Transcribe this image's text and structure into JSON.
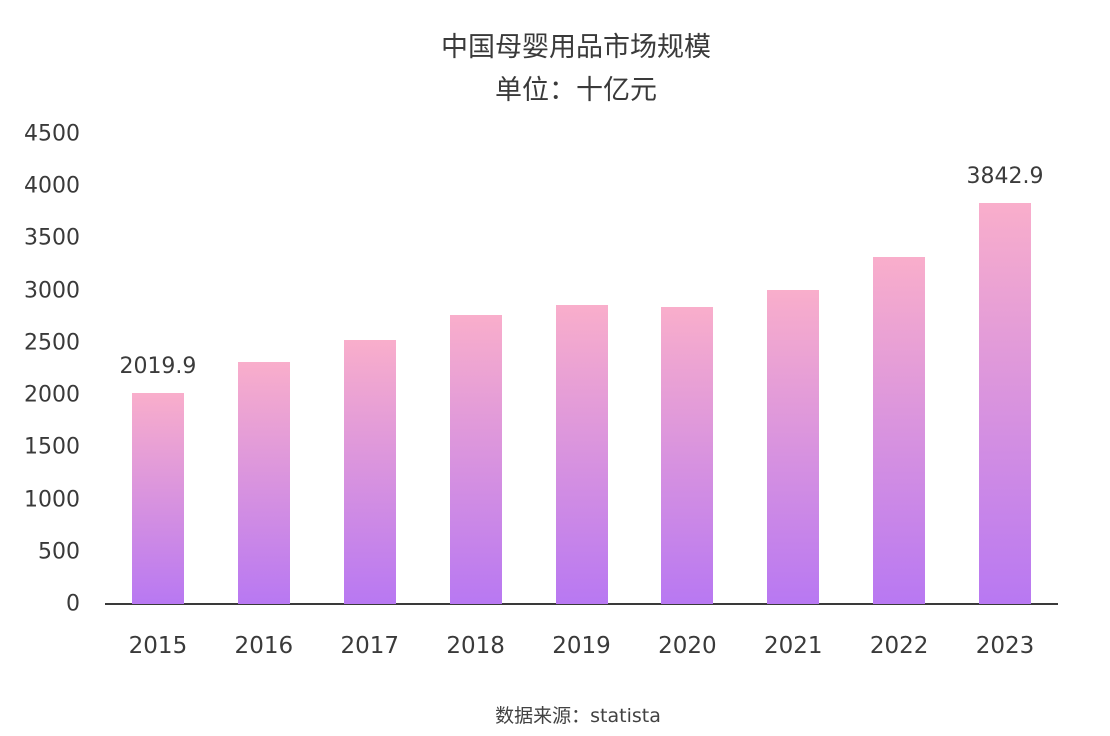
{
  "chart_data": {
    "type": "bar",
    "title": "中国母婴用品市场规模",
    "subtitle": "单位：十亿元",
    "categories": [
      "2015",
      "2016",
      "2017",
      "2018",
      "2019",
      "2020",
      "2021",
      "2022",
      "2023"
    ],
    "values": [
      2019.9,
      2320,
      2530,
      2770,
      2865,
      2840,
      3010,
      3325,
      3842.9
    ],
    "data_labels": [
      "2019.9",
      null,
      null,
      null,
      null,
      null,
      null,
      null,
      "3842.9"
    ],
    "yticks": [
      0,
      500,
      1000,
      1500,
      2000,
      2500,
      3000,
      3500,
      4000,
      4500
    ],
    "ylim": [
      0,
      4500
    ],
    "xlabel": "",
    "ylabel": "",
    "legend": "none",
    "grid": false,
    "bar_gradient_top": "#f9aecb",
    "bar_gradient_bottom": "#b878f2",
    "axis_line_color": "#3a3a3a",
    "text_color": "#3a3a3a",
    "source_note": "数据来源：statista"
  }
}
